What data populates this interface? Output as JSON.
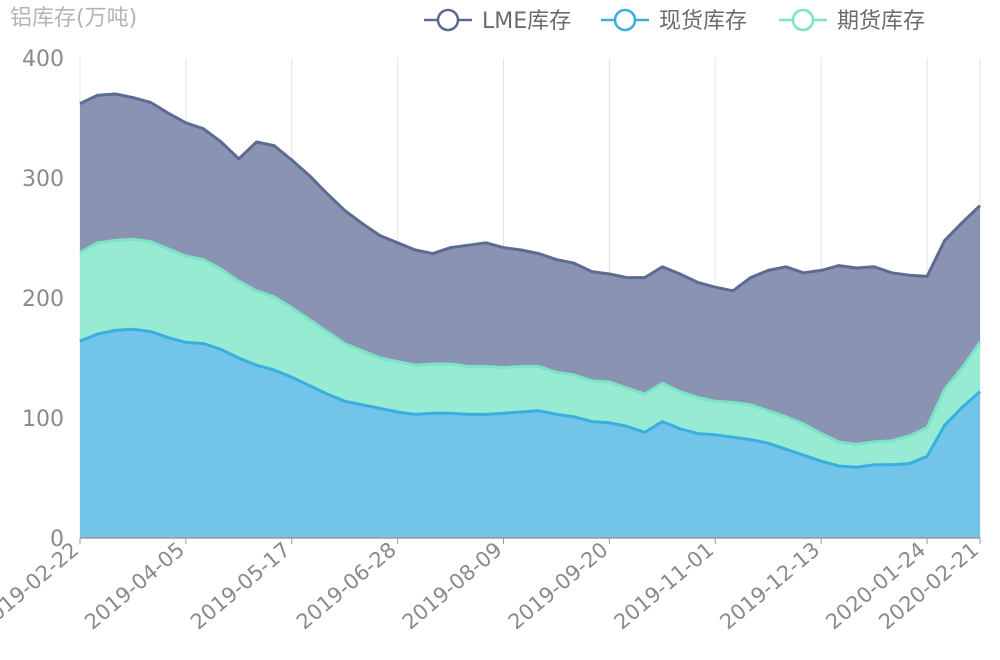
{
  "chart_data": {
    "type": "area",
    "ylabel": "铝库存(万吨)",
    "ylim": [
      0,
      400
    ],
    "yticks": [
      "400",
      "300",
      "200",
      "100",
      "0"
    ],
    "ytick_values": [
      400,
      300,
      200,
      100,
      0
    ],
    "xticks": [
      "2019-02-22",
      "2019-04-05",
      "2019-05-17",
      "2019-06-28",
      "2019-08-09",
      "2019-09-20",
      "2019-11-01",
      "2019-12-13",
      "2020-01-24",
      "2020-02-21"
    ],
    "xtick_indices": [
      0,
      6,
      12,
      18,
      24,
      30,
      36,
      42,
      48,
      51
    ],
    "grid": true,
    "legend_position": "top",
    "x": [
      "2019-02-22",
      "2019-03-01",
      "2019-03-08",
      "2019-03-15",
      "2019-03-22",
      "2019-03-29",
      "2019-04-05",
      "2019-04-12",
      "2019-04-19",
      "2019-04-26",
      "2019-05-03",
      "2019-05-10",
      "2019-05-17",
      "2019-05-24",
      "2019-05-31",
      "2019-06-07",
      "2019-06-14",
      "2019-06-21",
      "2019-06-28",
      "2019-07-05",
      "2019-07-12",
      "2019-07-19",
      "2019-07-26",
      "2019-08-02",
      "2019-08-09",
      "2019-08-16",
      "2019-08-23",
      "2019-08-30",
      "2019-09-06",
      "2019-09-13",
      "2019-09-20",
      "2019-09-27",
      "2019-10-04",
      "2019-10-11",
      "2019-10-18",
      "2019-10-25",
      "2019-11-01",
      "2019-11-08",
      "2019-11-15",
      "2019-11-22",
      "2019-11-29",
      "2019-12-06",
      "2019-12-13",
      "2019-12-20",
      "2019-12-27",
      "2020-01-03",
      "2020-01-10",
      "2020-01-17",
      "2020-01-24",
      "2020-01-31",
      "2020-02-07",
      "2020-02-21"
    ],
    "series": [
      {
        "name": "LME库存",
        "color": "#5d6a93",
        "fill": "#8a93b2",
        "values": [
          362,
          369,
          370,
          367,
          363,
          354,
          346,
          341,
          330,
          316,
          330,
          327,
          315,
          302,
          287,
          273,
          262,
          252,
          246,
          240,
          237,
          242,
          244,
          246,
          242,
          240,
          237,
          232,
          229,
          222,
          220,
          217,
          217,
          226,
          220,
          213,
          209,
          206,
          217,
          223,
          226,
          221,
          223,
          227,
          225,
          226,
          221,
          219,
          218,
          248,
          263,
          277
        ]
      },
      {
        "name": "期货库存",
        "color": "#7be3c6",
        "fill": "#96ebd2",
        "values": [
          238,
          246,
          248,
          249,
          247,
          241,
          235,
          232,
          224,
          214,
          206,
          201,
          192,
          182,
          172,
          162,
          156,
          150,
          147,
          144,
          145,
          145,
          143,
          143,
          142,
          143,
          143,
          138,
          136,
          131,
          130,
          125,
          120,
          129,
          122,
          117,
          114,
          113,
          111,
          106,
          101,
          95,
          87,
          80,
          78,
          80,
          81,
          85,
          92,
          124,
          142,
          163
        ]
      },
      {
        "name": "现货库存",
        "color": "#3aaee0",
        "fill": "#73c4e9",
        "values": [
          164,
          170,
          173,
          174,
          172,
          167,
          163,
          162,
          157,
          150,
          144,
          140,
          134,
          127,
          120,
          114,
          111,
          108,
          105,
          103,
          104,
          104,
          103,
          103,
          104,
          105,
          106,
          103,
          101,
          97,
          96,
          93,
          88,
          97,
          91,
          87,
          86,
          84,
          82,
          79,
          74,
          69,
          64,
          60,
          59,
          61,
          61,
          62,
          68,
          94,
          109,
          122
        ]
      }
    ]
  }
}
